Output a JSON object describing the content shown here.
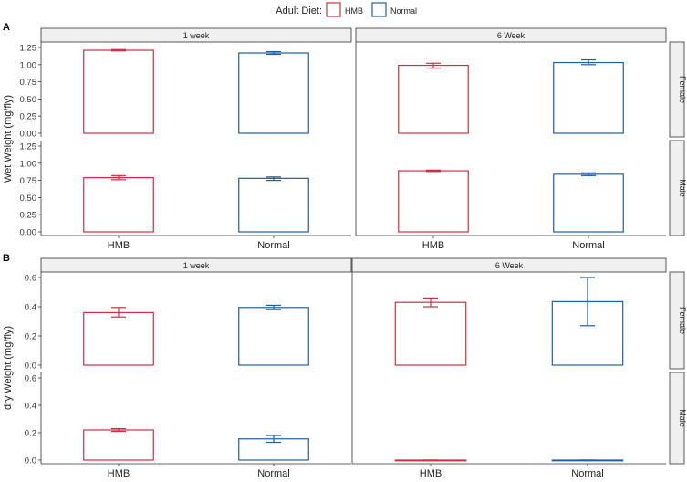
{
  "legend": {
    "title": "Adult Diet:",
    "items": [
      {
        "label": "HMB",
        "color": "#d62d42"
      },
      {
        "label": "Normal",
        "color": "#1f5fa0"
      }
    ]
  },
  "chart_data": [
    {
      "type": "bar",
      "panel_label": "A",
      "ylabel": "Wet Weight (mg/fly)",
      "ylim": [
        0,
        1.25
      ],
      "yticks": [
        0,
        0.25,
        0.5,
        0.75,
        1.0,
        1.25
      ],
      "ytick_labels": [
        "0.00",
        "0.25",
        "0.50",
        "0.75",
        "1.00",
        "1.25"
      ],
      "categories": [
        "HMB",
        "Normal"
      ],
      "facet_cols": [
        "1 week",
        "6 Week"
      ],
      "facet_rows": [
        "Female",
        "Male"
      ],
      "cells": [
        {
          "col": 0,
          "row": 0,
          "values": [
            1.21,
            1.17
          ],
          "errors": [
            [
              1.2,
              1.22
            ],
            [
              1.15,
              1.19
            ]
          ]
        },
        {
          "col": 1,
          "row": 0,
          "values": [
            0.99,
            1.03
          ],
          "errors": [
            [
              0.95,
              1.02
            ],
            [
              1.0,
              1.07
            ]
          ]
        },
        {
          "col": 0,
          "row": 1,
          "values": [
            0.79,
            0.78
          ],
          "errors": [
            [
              0.76,
              0.82
            ],
            [
              0.75,
              0.8
            ]
          ]
        },
        {
          "col": 1,
          "row": 1,
          "values": [
            0.89,
            0.84
          ],
          "errors": [
            [
              0.88,
              0.9
            ],
            [
              0.82,
              0.86
            ]
          ]
        }
      ]
    },
    {
      "type": "bar",
      "panel_label": "B",
      "ylabel": "dry Weight (mg/fly)",
      "ylim": [
        0,
        0.6
      ],
      "yticks": [
        0,
        0.2,
        0.4,
        0.6
      ],
      "ytick_labels": [
        "0.0",
        "0.2",
        "0.4",
        "0.6"
      ],
      "categories": [
        "HMB",
        "Normal"
      ],
      "facet_cols": [
        "1 week",
        "6 Week"
      ],
      "facet_rows": [
        "Female",
        "Male"
      ],
      "cells": [
        {
          "col": 0,
          "row": 0,
          "values": [
            0.36,
            0.395
          ],
          "errors": [
            [
              0.33,
              0.395
            ],
            [
              0.38,
              0.41
            ]
          ]
        },
        {
          "col": 1,
          "row": 0,
          "values": [
            0.43,
            0.435
          ],
          "errors": [
            [
              0.4,
              0.46
            ],
            [
              0.27,
              0.6
            ]
          ]
        },
        {
          "col": 0,
          "row": 1,
          "values": [
            0.22,
            0.155
          ],
          "errors": [
            [
              0.21,
              0.23
            ],
            [
              0.13,
              0.18
            ]
          ]
        },
        {
          "col": 1,
          "row": 1,
          "values": [
            0.0,
            0.0
          ],
          "errors": [
            [
              0.0,
              0.0
            ],
            [
              0.0,
              0.0
            ]
          ]
        }
      ]
    }
  ]
}
